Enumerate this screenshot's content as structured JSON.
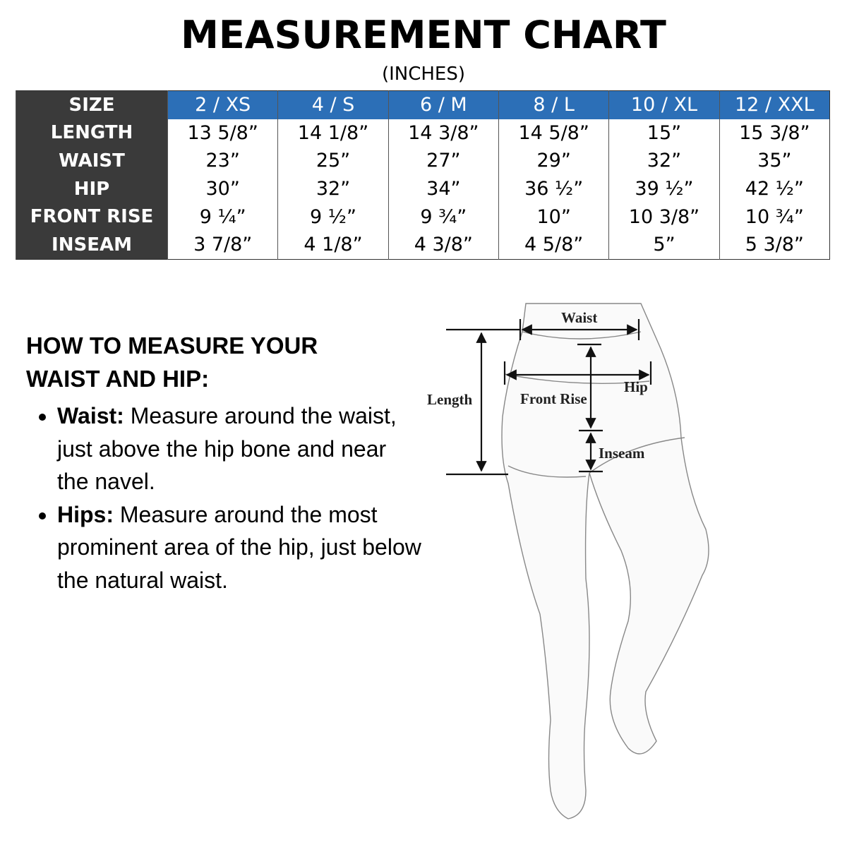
{
  "title": "MEASUREMENT CHART",
  "subtitle": "(INCHES)",
  "table": {
    "header": {
      "label": "SIZE",
      "sizes": [
        "2 / XS",
        "4 / S",
        "6 / M",
        "8 / L",
        "10 / XL",
        "12 / XXL"
      ]
    },
    "rows": [
      {
        "label": "LENGTH",
        "values": [
          "13 5/8”",
          "14 1/8”",
          "14 3/8”",
          "14 5/8”",
          "15”",
          "15 3/8”"
        ]
      },
      {
        "label": "WAIST",
        "values": [
          "23”",
          "25”",
          "27”",
          "29”",
          "32”",
          "35”"
        ]
      },
      {
        "label": "HIP",
        "values": [
          "30”",
          "32”",
          "34”",
          "36 ½”",
          "39 ½”",
          "42 ½”"
        ]
      },
      {
        "label": "FRONT RISE",
        "values": [
          "9 ¼”",
          "9 ½”",
          "9 ¾”",
          "10”",
          "10 3/8”",
          "10 ¾”"
        ]
      },
      {
        "label": "INSEAM",
        "values": [
          "3 7/8”",
          "4 1/8”",
          "4 3/8”",
          "4 5/8”",
          "5”",
          "5 3/8”"
        ]
      }
    ],
    "colors": {
      "label_bg": "#3a3a3a",
      "header_bg": "#2c6fb7"
    }
  },
  "howto": {
    "heading_line1": "HOW TO MEASURE YOUR",
    "heading_line2": "WAIST AND HIP:",
    "items": [
      {
        "term": "Waist:",
        "text": " Measure around the waist, just above the hip bone and near the navel."
      },
      {
        "term": "Hips:",
        "text": " Measure around the most prominent area of the hip, just below the natural waist."
      }
    ]
  },
  "diagram": {
    "labels": {
      "waist": "Waist",
      "hip": "Hip",
      "length": "Length",
      "front_rise": "Front Rise",
      "inseam": "Inseam"
    }
  }
}
